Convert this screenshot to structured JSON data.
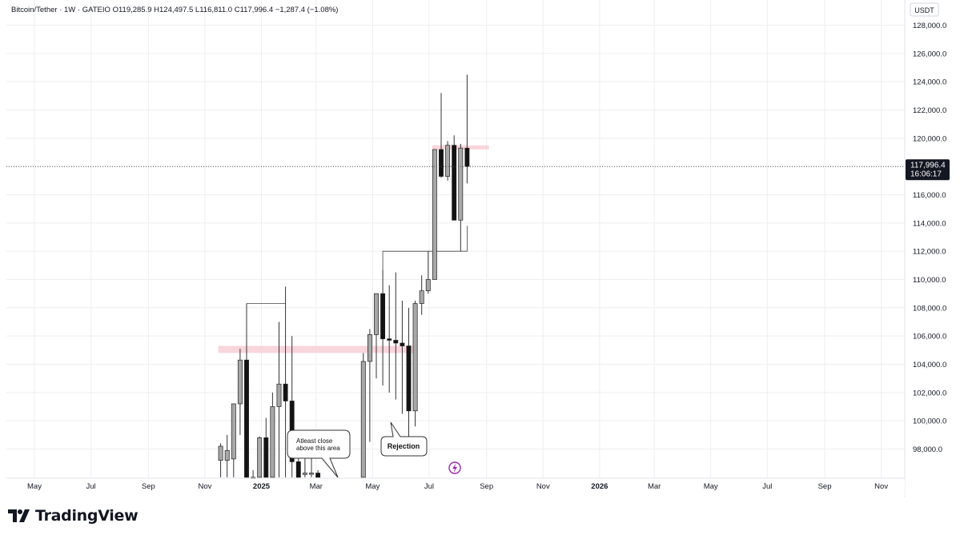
{
  "header": {
    "symbol": "Bitcoin/Tether",
    "interval": "1W",
    "exchange": "GATEIO",
    "open": "O119,285.9",
    "high": "H124,497.5",
    "low": "L116,811.0",
    "close": "C117,996.4",
    "change": "−1,287.4 (−1.08%)"
  },
  "currency_label": "USDT",
  "last_price": {
    "price_label": "117,996.4",
    "countdown": "16:06:17"
  },
  "brand": {
    "name": "TradingView"
  },
  "colors": {
    "bull_body": "#a8a8a8",
    "bear_body": "#131313",
    "wick": "#333333",
    "zone": "#f8cfd6",
    "grid": "#eeeeee",
    "last_price_tag": "#131722",
    "lightning": "#9c27b0"
  },
  "chart_data": {
    "type": "candlestick",
    "title": "Bitcoin/Tether · 1W · GATEIO",
    "ylabel": "USDT",
    "ylim": [
      96800,
      128900
    ],
    "y_ticks": [
      98000,
      100000,
      102000,
      104000,
      106000,
      108000,
      110000,
      112000,
      114000,
      116000,
      118000,
      120000,
      122000,
      124000,
      126000,
      128000
    ],
    "y_tick_labels": [
      "98,000.0",
      "100,000.0",
      "102,000.0",
      "104,000.0",
      "106,000.0",
      "108,000.0",
      "110,000.0",
      "112,000.0",
      "114,000.0",
      "116,000.0",
      "118,000.0",
      "120,000.0",
      "122,000.0",
      "124,000.0",
      "126,000.0",
      "128,000.0"
    ],
    "x_ticks": [
      {
        "date": "2024-05-01",
        "label": "May",
        "bold": false
      },
      {
        "date": "2024-07-01",
        "label": "Jul",
        "bold": false
      },
      {
        "date": "2024-09-01",
        "label": "Sep",
        "bold": false
      },
      {
        "date": "2024-11-01",
        "label": "Nov",
        "bold": false
      },
      {
        "date": "2025-01-01",
        "label": "2025",
        "bold": true
      },
      {
        "date": "2025-03-01",
        "label": "Mar",
        "bold": false
      },
      {
        "date": "2025-05-01",
        "label": "May",
        "bold": false
      },
      {
        "date": "2025-07-01",
        "label": "Jul",
        "bold": false
      },
      {
        "date": "2025-09-01",
        "label": "Sep",
        "bold": false
      },
      {
        "date": "2025-11-01",
        "label": "Nov",
        "bold": false
      },
      {
        "date": "2026-01-01",
        "label": "2026",
        "bold": true
      },
      {
        "date": "2026-03-01",
        "label": "Mar",
        "bold": false
      },
      {
        "date": "2026-05-01",
        "label": "May",
        "bold": false
      },
      {
        "date": "2026-07-01",
        "label": "Jul",
        "bold": false
      },
      {
        "date": "2026-09-01",
        "label": "Sep",
        "bold": false
      },
      {
        "date": "2026-11-01",
        "label": "Nov",
        "bold": false
      }
    ],
    "candles": [
      {
        "date": "2024-11-18",
        "o": 97200,
        "h": 98400,
        "l": 96000,
        "c": 98200
      },
      {
        "date": "2024-11-25",
        "o": 97200,
        "h": 99000,
        "l": 96000,
        "c": 97900
      },
      {
        "date": "2024-12-02",
        "o": 97300,
        "h": 101100,
        "l": 96000,
        "c": 101200
      },
      {
        "date": "2024-12-09",
        "o": 101200,
        "h": 105100,
        "l": 99000,
        "c": 104300
      },
      {
        "date": "2024-12-16",
        "o": 104300,
        "h": 108300,
        "l": 96000,
        "c": 96000
      },
      {
        "date": "2024-12-23",
        "o": 96000,
        "h": 96500,
        "l": 96000,
        "c": 96000
      },
      {
        "date": "2024-12-30",
        "o": 96000,
        "h": 98900,
        "l": 96000,
        "c": 98800
      },
      {
        "date": "2025-01-06",
        "o": 98800,
        "h": 100200,
        "l": 96000,
        "c": 96000
      },
      {
        "date": "2025-01-13",
        "o": 96000,
        "h": 102000,
        "l": 96000,
        "c": 101000
      },
      {
        "date": "2025-01-20",
        "o": 101000,
        "h": 107000,
        "l": 96000,
        "c": 102600
      },
      {
        "date": "2025-01-27",
        "o": 102600,
        "h": 109500,
        "l": 96000,
        "c": 101400
      },
      {
        "date": "2025-02-03",
        "o": 101400,
        "h": 106000,
        "l": 96000,
        "c": 97100
      },
      {
        "date": "2025-02-10",
        "o": 97100,
        "h": 99000,
        "l": 96000,
        "c": 96000
      },
      {
        "date": "2025-02-17",
        "o": 96200,
        "h": 97500,
        "l": 96000,
        "c": 96300
      },
      {
        "date": "2025-02-24",
        "o": 96300,
        "h": 99000,
        "l": 96000,
        "c": 96300
      },
      {
        "date": "2025-03-03",
        "o": 96300,
        "h": 96500,
        "l": 96000,
        "c": 96000
      },
      {
        "date": "2025-04-21",
        "o": 96000,
        "h": 104800,
        "l": 96000,
        "c": 104200
      },
      {
        "date": "2025-04-28",
        "o": 104200,
        "h": 106500,
        "l": 98500,
        "c": 106100
      },
      {
        "date": "2025-05-05",
        "o": 106100,
        "h": 109000,
        "l": 103000,
        "c": 109000
      },
      {
        "date": "2025-05-12",
        "o": 109000,
        "h": 110700,
        "l": 102500,
        "c": 105800
      },
      {
        "date": "2025-05-19",
        "o": 105800,
        "h": 109600,
        "l": 102000,
        "c": 105700
      },
      {
        "date": "2025-05-26",
        "o": 105700,
        "h": 110500,
        "l": 101500,
        "c": 105500
      },
      {
        "date": "2025-06-02",
        "o": 105500,
        "h": 108500,
        "l": 100500,
        "c": 105300
      },
      {
        "date": "2025-06-09",
        "o": 105300,
        "h": 108000,
        "l": 98800,
        "c": 100700
      },
      {
        "date": "2025-06-16",
        "o": 100700,
        "h": 108500,
        "l": 99600,
        "c": 108300
      },
      {
        "date": "2025-06-23",
        "o": 108300,
        "h": 110300,
        "l": 107500,
        "c": 109200
      },
      {
        "date": "2025-06-30",
        "o": 109200,
        "h": 112000,
        "l": 109000,
        "c": 110000
      },
      {
        "date": "2025-07-07",
        "o": 110000,
        "h": 119000,
        "l": 110000,
        "c": 119200
      },
      {
        "date": "2025-07-14",
        "o": 119200,
        "h": 123200,
        "l": 117200,
        "c": 117300
      },
      {
        "date": "2025-07-21",
        "o": 117300,
        "h": 119800,
        "l": 117000,
        "c": 119500
      },
      {
        "date": "2025-07-28",
        "o": 119500,
        "h": 120200,
        "l": 114300,
        "c": 114200
      },
      {
        "date": "2025-08-04",
        "o": 114200,
        "h": 119600,
        "l": 112000,
        "c": 119300
      },
      {
        "date": "2025-08-11",
        "o": 119300,
        "h": 124500,
        "l": 116800,
        "c": 118000
      }
    ],
    "zones": [
      {
        "from": "2024-11-18",
        "to": "2025-06-16",
        "y_low": 104800,
        "y_high": 105300
      },
      {
        "from": "2025-07-07",
        "to": "2025-09-01",
        "y_low": 119200,
        "y_high": 119500
      }
    ],
    "connector_lines": [
      {
        "points": [
          [
            "2024-12-16",
            108300
          ],
          [
            "2025-01-27",
            108300
          ]
        ]
      },
      {
        "points": [
          [
            "2025-05-12",
            110700
          ],
          [
            "2025-05-12",
            112000
          ],
          [
            "2025-08-11",
            112000
          ],
          [
            "2025-08-11",
            113800
          ]
        ]
      }
    ],
    "last_price": 117996.4,
    "annotations": [
      {
        "text": "Atleast close above this area",
        "line1": "Atleast close",
        "line2": "above this area"
      },
      {
        "text": "Rejection"
      }
    ]
  }
}
